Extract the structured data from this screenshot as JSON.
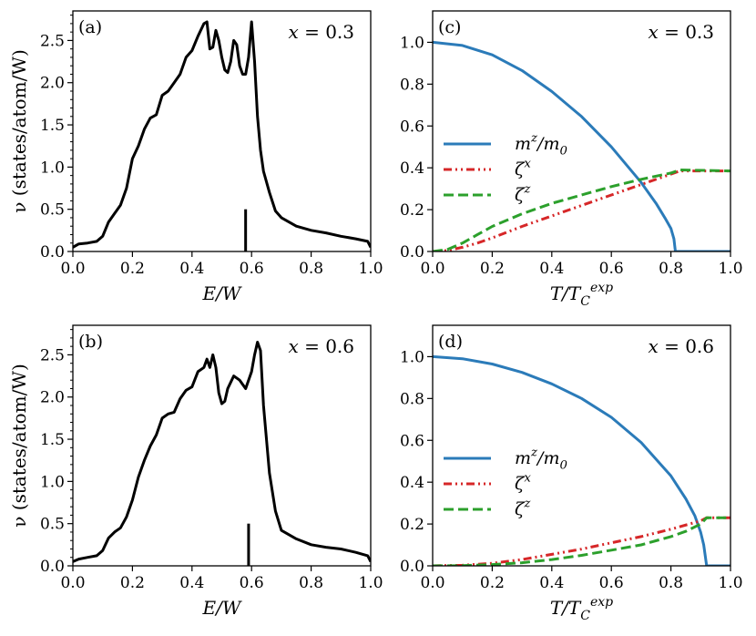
{
  "chart_data": [
    {
      "type": "line",
      "panel": "(a)",
      "annotation": "x = 0.3",
      "xlabel": "E/W",
      "ylabel": "ν (states/atom/W)",
      "xlim": [
        0,
        1.0
      ],
      "ylim": [
        0,
        2.85
      ],
      "xticks": [
        "0.0",
        "0.2",
        "0.4",
        "0.6",
        "0.8",
        "1.0"
      ],
      "yticks": [
        "0.0",
        "0.5",
        "1.0",
        "1.5",
        "2.0",
        "2.5"
      ],
      "grid": false,
      "series": [
        {
          "color": "#000000",
          "x": [
            0.0,
            0.02,
            0.05,
            0.08,
            0.1,
            0.12,
            0.14,
            0.16,
            0.18,
            0.2,
            0.22,
            0.24,
            0.26,
            0.28,
            0.3,
            0.32,
            0.34,
            0.36,
            0.38,
            0.4,
            0.42,
            0.44,
            0.45,
            0.46,
            0.47,
            0.48,
            0.49,
            0.5,
            0.51,
            0.52,
            0.53,
            0.54,
            0.55,
            0.56,
            0.57,
            0.58,
            0.59,
            0.6,
            0.61,
            0.62,
            0.63,
            0.64,
            0.66,
            0.68,
            0.7,
            0.75,
            0.8,
            0.85,
            0.9,
            0.95,
            0.99,
            1.0
          ],
          "y": [
            0.05,
            0.09,
            0.1,
            0.12,
            0.18,
            0.35,
            0.45,
            0.55,
            0.75,
            1.1,
            1.25,
            1.45,
            1.58,
            1.62,
            1.85,
            1.9,
            2.0,
            2.1,
            2.3,
            2.38,
            2.55,
            2.7,
            2.72,
            2.4,
            2.42,
            2.62,
            2.5,
            2.3,
            2.15,
            2.12,
            2.25,
            2.5,
            2.45,
            2.2,
            2.1,
            2.1,
            2.3,
            2.72,
            2.25,
            1.6,
            1.2,
            0.95,
            0.7,
            0.48,
            0.4,
            0.3,
            0.25,
            0.22,
            0.18,
            0.15,
            0.12,
            0.05
          ]
        }
      ],
      "marker_line": {
        "x": 0.58,
        "y_top": 0.5
      }
    },
    {
      "type": "line",
      "panel": "(b)",
      "annotation": "x = 0.6",
      "xlabel": "E/W",
      "ylabel": "ν (states/atom/W)",
      "xlim": [
        0,
        1.0
      ],
      "ylim": [
        0,
        2.85
      ],
      "xticks": [
        "0.0",
        "0.2",
        "0.4",
        "0.6",
        "0.8",
        "1.0"
      ],
      "yticks": [
        "0.0",
        "0.5",
        "1.0",
        "1.5",
        "2.0",
        "2.5"
      ],
      "grid": false,
      "series": [
        {
          "color": "#000000",
          "x": [
            0.0,
            0.02,
            0.05,
            0.08,
            0.1,
            0.12,
            0.14,
            0.16,
            0.18,
            0.2,
            0.22,
            0.24,
            0.26,
            0.28,
            0.3,
            0.32,
            0.34,
            0.36,
            0.38,
            0.4,
            0.42,
            0.44,
            0.45,
            0.46,
            0.47,
            0.48,
            0.49,
            0.5,
            0.51,
            0.52,
            0.54,
            0.56,
            0.58,
            0.6,
            0.61,
            0.62,
            0.63,
            0.64,
            0.66,
            0.68,
            0.7,
            0.75,
            0.8,
            0.85,
            0.9,
            0.95,
            0.99,
            1.0
          ],
          "y": [
            0.05,
            0.08,
            0.1,
            0.12,
            0.18,
            0.33,
            0.4,
            0.45,
            0.58,
            0.78,
            1.05,
            1.25,
            1.42,
            1.55,
            1.75,
            1.8,
            1.82,
            1.98,
            2.08,
            2.12,
            2.3,
            2.35,
            2.45,
            2.35,
            2.5,
            2.35,
            2.05,
            1.92,
            1.95,
            2.1,
            2.25,
            2.2,
            2.1,
            2.3,
            2.5,
            2.65,
            2.55,
            1.9,
            1.1,
            0.65,
            0.42,
            0.32,
            0.25,
            0.22,
            0.2,
            0.16,
            0.12,
            0.05
          ]
        }
      ],
      "marker_line": {
        "x": 0.59,
        "y_top": 0.5
      }
    },
    {
      "type": "line",
      "panel": "(c)",
      "annotation": "x = 0.3",
      "xlabel": "T/T_C^exp",
      "ylabel": "",
      "xlim": [
        0,
        1.0
      ],
      "ylim": [
        0,
        1.15
      ],
      "xticks": [
        "0.0",
        "0.2",
        "0.4",
        "0.6",
        "0.8",
        "1.0"
      ],
      "yticks": [
        "0.0",
        "0.2",
        "0.4",
        "0.6",
        "0.8",
        "1.0"
      ],
      "grid": false,
      "legend_position": "center-left",
      "series": [
        {
          "name": "m^z/m_0",
          "color": "#2b7bb9",
          "dash": "solid",
          "x": [
            0.0,
            0.1,
            0.2,
            0.3,
            0.4,
            0.5,
            0.6,
            0.7,
            0.75,
            0.78,
            0.8,
            0.81,
            0.815,
            0.82,
            0.82,
            1.0
          ],
          "y": [
            1.0,
            0.985,
            0.94,
            0.865,
            0.765,
            0.645,
            0.5,
            0.33,
            0.23,
            0.16,
            0.11,
            0.06,
            0.0,
            0.0,
            0.0,
            0.0
          ]
        },
        {
          "name": "ζ^x",
          "color": "#d62728",
          "dash": "dashdotdot",
          "x": [
            0.0,
            0.05,
            0.1,
            0.15,
            0.2,
            0.3,
            0.4,
            0.5,
            0.6,
            0.7,
            0.8,
            0.83,
            1.0
          ],
          "y": [
            0.0,
            0.005,
            0.02,
            0.04,
            0.065,
            0.12,
            0.17,
            0.22,
            0.27,
            0.32,
            0.37,
            0.385,
            0.385
          ]
        },
        {
          "name": "ζ^z",
          "color": "#2ca02c",
          "dash": "dashed",
          "x": [
            0.0,
            0.05,
            0.1,
            0.15,
            0.2,
            0.3,
            0.4,
            0.5,
            0.6,
            0.7,
            0.8,
            0.83,
            1.0
          ],
          "y": [
            0.0,
            0.01,
            0.04,
            0.08,
            0.12,
            0.18,
            0.23,
            0.27,
            0.31,
            0.345,
            0.375,
            0.39,
            0.385
          ]
        }
      ]
    },
    {
      "type": "line",
      "panel": "(d)",
      "annotation": "x = 0.6",
      "xlabel": "T/T_C^exp",
      "ylabel": "",
      "xlim": [
        0,
        1.0
      ],
      "ylim": [
        0,
        1.15
      ],
      "xticks": [
        "0.0",
        "0.2",
        "0.4",
        "0.6",
        "0.8",
        "1.0"
      ],
      "yticks": [
        "0.0",
        "0.2",
        "0.4",
        "0.6",
        "0.8",
        "1.0"
      ],
      "grid": false,
      "legend_position": "center-left",
      "series": [
        {
          "name": "m^z/m_0",
          "color": "#2b7bb9",
          "dash": "solid",
          "x": [
            0.0,
            0.1,
            0.2,
            0.3,
            0.4,
            0.5,
            0.6,
            0.7,
            0.8,
            0.85,
            0.88,
            0.9,
            0.91,
            0.915,
            0.92,
            0.92,
            1.0
          ],
          "y": [
            1.0,
            0.99,
            0.965,
            0.925,
            0.87,
            0.8,
            0.71,
            0.59,
            0.43,
            0.32,
            0.24,
            0.16,
            0.1,
            0.05,
            0.0,
            0.0,
            0.0
          ]
        },
        {
          "name": "ζ^x",
          "color": "#d62728",
          "dash": "dashdotdot",
          "x": [
            0.0,
            0.1,
            0.2,
            0.3,
            0.4,
            0.5,
            0.6,
            0.7,
            0.8,
            0.9,
            0.92,
            1.0
          ],
          "y": [
            0.0,
            0.003,
            0.012,
            0.03,
            0.055,
            0.08,
            0.11,
            0.14,
            0.175,
            0.215,
            0.23,
            0.23
          ]
        },
        {
          "name": "ζ^z",
          "color": "#2ca02c",
          "dash": "dashed",
          "x": [
            0.0,
            0.1,
            0.2,
            0.3,
            0.4,
            0.5,
            0.6,
            0.7,
            0.8,
            0.85,
            0.9,
            0.92,
            1.0
          ],
          "y": [
            0.0,
            0.001,
            0.006,
            0.015,
            0.03,
            0.05,
            0.075,
            0.1,
            0.14,
            0.165,
            0.2,
            0.23,
            0.23
          ]
        }
      ]
    }
  ]
}
